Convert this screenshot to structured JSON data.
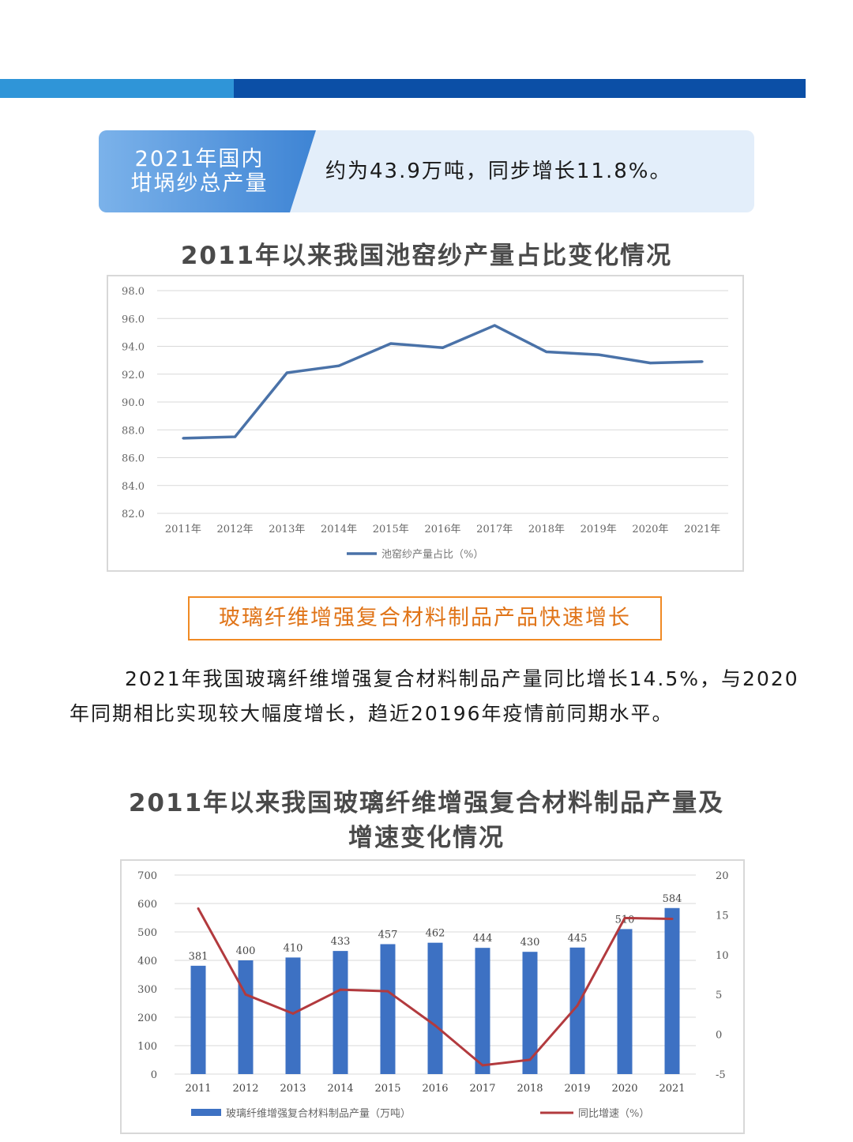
{
  "banner": {
    "tab_line1": "2021年国内",
    "tab_line2": "坩埚纱总产量",
    "text": "约为43.9万吨，同步增长11.8%。"
  },
  "chart1": {
    "title": "2011年以来我国池窑纱产量占比变化情况"
  },
  "section": {
    "heading": "玻璃纤维增强复合材料制品产品快速增长",
    "paragraph": "2021年我国玻璃纤维增强复合材料制品产量同比增长14.5%，与2020年同期相比实现较大幅度增长，趋近20196年疫情前同期水平。"
  },
  "chart2": {
    "title_line1": "2011年以来我国玻璃纤维增强复合材料制品产量及",
    "title_line2": "增速变化情况"
  },
  "chart_data": [
    {
      "type": "line",
      "title": "2011年以来我国池窑纱产量占比变化情况",
      "categories": [
        "2011年",
        "2012年",
        "2013年",
        "2014年",
        "2015年",
        "2016年",
        "2017年",
        "2018年",
        "2019年",
        "2020年",
        "2021年"
      ],
      "series": [
        {
          "name": "池窑纱产量占比（%）",
          "color": "#4a72a8",
          "values": [
            87.4,
            87.5,
            92.1,
            92.6,
            94.2,
            93.9,
            95.5,
            93.6,
            93.4,
            92.8,
            92.9
          ]
        }
      ],
      "ylim": [
        82.0,
        98.0
      ],
      "y_ticks": [
        "82.0",
        "84.0",
        "86.0",
        "88.0",
        "90.0",
        "92.0",
        "94.0",
        "96.0",
        "98.0"
      ],
      "grid": true,
      "legend": "bottom"
    },
    {
      "type": "bar",
      "title": "2011年以来我国玻璃纤维增强复合材料制品产量及增速变化情况",
      "categories": [
        "2011",
        "2012",
        "2013",
        "2014",
        "2015",
        "2016",
        "2017",
        "2018",
        "2019",
        "2020",
        "2021"
      ],
      "series": [
        {
          "name": "玻璃纤维增强复合材料制品产量（万吨）",
          "type": "bar",
          "color": "#3d71c3",
          "values": [
            381,
            400,
            410,
            433,
            457,
            462,
            444,
            430,
            445,
            510,
            584
          ]
        },
        {
          "name": "同比增速（%）",
          "type": "line",
          "axis": "right",
          "color": "#b23a3e",
          "values": [
            15.8,
            5.0,
            2.6,
            5.6,
            5.4,
            1.1,
            -3.9,
            -3.2,
            3.6,
            14.6,
            14.5
          ]
        }
      ],
      "ylim": [
        0,
        700
      ],
      "y_ticks": [
        "0",
        "100",
        "200",
        "300",
        "400",
        "500",
        "600",
        "700"
      ],
      "y2lim": [
        -5,
        20
      ],
      "y2_ticks": [
        "-5",
        "0",
        "5",
        "10",
        "15",
        "20"
      ],
      "grid": true,
      "legend": "bottom"
    }
  ]
}
